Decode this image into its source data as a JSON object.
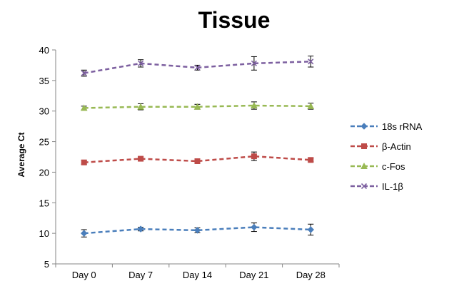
{
  "chart_data": {
    "type": "line",
    "title": "Tissue",
    "xlabel": "",
    "ylabel": "Average Ct",
    "categories": [
      "Day 0",
      "Day 7",
      "Day 14",
      "Day 21",
      "Day 28"
    ],
    "ylim": [
      5,
      40
    ],
    "yticks": [
      5,
      10,
      15,
      20,
      25,
      30,
      35,
      40
    ],
    "grid": false,
    "legend_position": "right",
    "series": [
      {
        "name": "18s rRNA",
        "color": "#4a7ebb",
        "marker": "diamond",
        "values": [
          10.0,
          10.7,
          10.5,
          11.0,
          10.6
        ],
        "errors": [
          0.6,
          0.3,
          0.4,
          0.7,
          0.9
        ]
      },
      {
        "name": "β-Actin",
        "color": "#be4b48",
        "marker": "square",
        "values": [
          21.6,
          22.2,
          21.8,
          22.6,
          22.0
        ],
        "errors": [
          0.3,
          0.3,
          0.4,
          0.7,
          0.3
        ]
      },
      {
        "name": "c-Fos",
        "color": "#98b954",
        "marker": "triangle",
        "values": [
          30.5,
          30.7,
          30.7,
          30.9,
          30.8
        ],
        "errors": [
          0.3,
          0.5,
          0.4,
          0.6,
          0.5
        ]
      },
      {
        "name": "IL-1β",
        "color": "#7d60a0",
        "marker": "x",
        "values": [
          36.2,
          37.8,
          37.1,
          37.8,
          38.1
        ],
        "errors": [
          0.5,
          0.6,
          0.4,
          1.1,
          0.9
        ]
      }
    ]
  }
}
